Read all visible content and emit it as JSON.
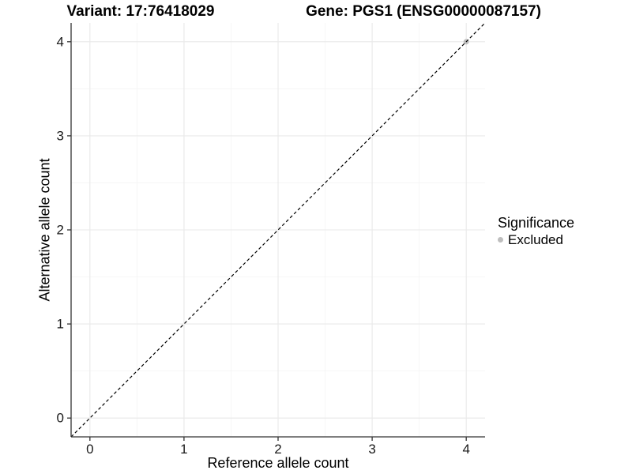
{
  "chart_data": {
    "type": "scatter",
    "titles": {
      "left": "Variant: 17:76418029",
      "right": "Gene: PGS1 (ENSG00000087157)"
    },
    "xlabel": "Reference allele count",
    "ylabel": "Alternative allele count",
    "xlim": [
      -0.2,
      4.2
    ],
    "ylim": [
      -0.2,
      4.2
    ],
    "xticks": [
      0,
      1,
      2,
      3,
      4
    ],
    "yticks": [
      0,
      1,
      2,
      3,
      4
    ],
    "xticks_minor": [
      0.5,
      1.5,
      2.5,
      3.5
    ],
    "yticks_minor": [
      0.5,
      1.5,
      2.5,
      3.5
    ],
    "grid": "major+minor",
    "reference_line": {
      "type": "abline",
      "slope": 1,
      "intercept": 0,
      "linestyle": "dashed",
      "color": "#000000"
    },
    "series": [
      {
        "name": "Excluded",
        "marker": "circle",
        "color": "#bebebe",
        "points": [
          [
            4,
            4
          ]
        ]
      }
    ],
    "legend": {
      "title": "Significance",
      "position": "right",
      "items": [
        {
          "label": "Excluded",
          "color": "#bebebe"
        }
      ]
    },
    "style": {
      "panel_background": "#ffffff",
      "grid_major_color": "#e9e9e9",
      "grid_minor_color": "#f4f4f4",
      "axis_line_color": "#333333",
      "tick_label_color": "#1a1a1a"
    }
  }
}
